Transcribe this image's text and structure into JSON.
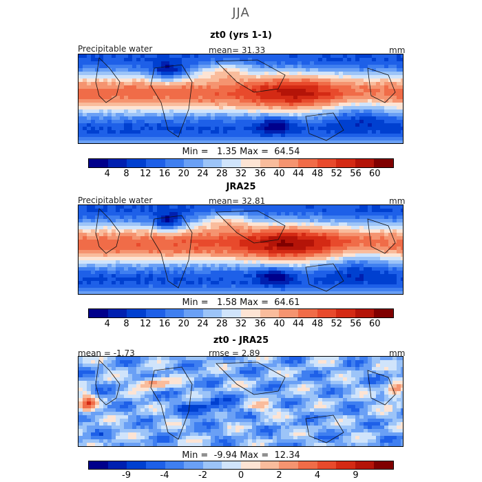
{
  "figure_title": "JJA",
  "colors": {
    "abs_scale": [
      "#00008b",
      "#0020b0",
      "#0040d0",
      "#1e60e8",
      "#3f7ff0",
      "#6aa0f5",
      "#9cc4f8",
      "#d0e4fb",
      "#fde4d4",
      "#f9bc9c",
      "#f59470",
      "#f06c48",
      "#e84a2c",
      "#d42a14",
      "#b41408",
      "#800000"
    ],
    "diff_scale": [
      "#00008b",
      "#0020b0",
      "#0040d0",
      "#1e60e8",
      "#3f7ff0",
      "#6aa0f5",
      "#9cc4f8",
      "#d0e4fb",
      "#fde4d4",
      "#f9bc9c",
      "#f59470",
      "#f06c48",
      "#e84a2c",
      "#d42a14",
      "#b41408",
      "#800000"
    ]
  },
  "panels": [
    {
      "title": "zt0 (yrs 1-1)",
      "left_label": "Precipitable water",
      "mean_text": "mean=  31.33",
      "units": "mm",
      "minmax_text": "Min =   1.35 Max =  64.54",
      "tick_labels": [
        "4",
        "8",
        "12",
        "16",
        "20",
        "24",
        "28",
        "32",
        "36",
        "40",
        "44",
        "48",
        "52",
        "56",
        "60"
      ]
    },
    {
      "title": "JRA25",
      "left_label": "Precipitable water",
      "mean_text": "mean=  32.81",
      "units": "mm",
      "minmax_text": "Min =   1.58 Max =  64.61",
      "tick_labels": [
        "4",
        "8",
        "12",
        "16",
        "20",
        "24",
        "28",
        "32",
        "36",
        "40",
        "44",
        "48",
        "52",
        "56",
        "60"
      ]
    },
    {
      "title": "zt0 - JRA25",
      "left_label": "mean =  -1.73",
      "mean_text": "rmse =   2.89",
      "units": "mm",
      "minmax_text": "Min =  -9.94 Max =  12.34",
      "tick_labels": [
        "-9",
        "-4",
        "-2",
        "0",
        "2",
        "4",
        "9"
      ]
    }
  ],
  "chart_data": [
    {
      "type": "heatmap",
      "title": "zt0 (yrs 1-1)",
      "field": "Precipitable water",
      "units": "mm",
      "mean": 31.33,
      "min": 1.35,
      "max": 64.54,
      "colorbar_levels": [
        4,
        8,
        12,
        16,
        20,
        24,
        28,
        32,
        36,
        40,
        44,
        48,
        52,
        56,
        60
      ]
    },
    {
      "type": "heatmap",
      "title": "JRA25",
      "field": "Precipitable water",
      "units": "mm",
      "mean": 32.81,
      "min": 1.58,
      "max": 64.61,
      "colorbar_levels": [
        4,
        8,
        12,
        16,
        20,
        24,
        28,
        32,
        36,
        40,
        44,
        48,
        52,
        56,
        60
      ]
    },
    {
      "type": "heatmap",
      "title": "zt0 - JRA25",
      "units": "mm",
      "mean": -1.73,
      "rmse": 2.89,
      "min": -9.94,
      "max": 12.34,
      "colorbar_levels": [
        -9,
        -4,
        -2,
        0,
        2,
        4,
        9
      ]
    }
  ]
}
